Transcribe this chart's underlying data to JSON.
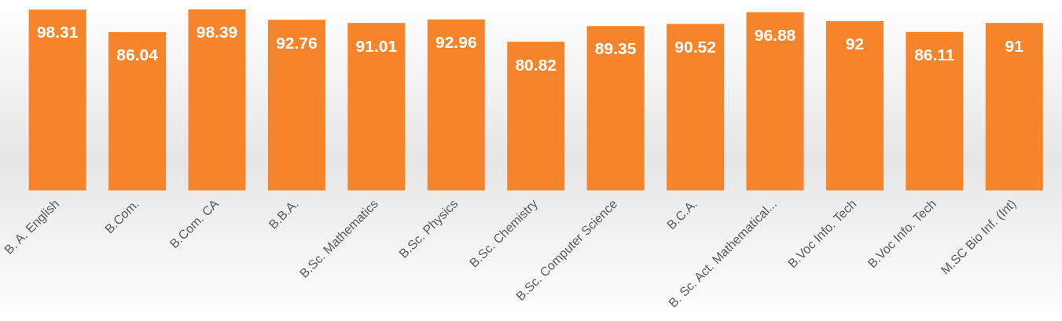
{
  "chart_data": {
    "type": "bar",
    "categories": [
      "B. A. English",
      "B.Com.",
      "B.Com. CA",
      "B.B.A.",
      "B.Sc. Mathematics",
      "B.Sc. Physics",
      "B.Sc. Chemistry",
      "B.Sc. Computer Science",
      "B.C.A.",
      "B. Sc. Act. Mathematical...",
      "B.Voc Info. Tech",
      "B.Voc Info. Tech",
      "M.SC Bio Inf. (Int)"
    ],
    "values": [
      98.31,
      86.04,
      98.39,
      92.76,
      91.01,
      92.96,
      80.82,
      89.35,
      90.52,
      96.88,
      92,
      86.11,
      91
    ],
    "color": "#f5842a",
    "data_labels": true,
    "grid": false,
    "legend": false
  }
}
